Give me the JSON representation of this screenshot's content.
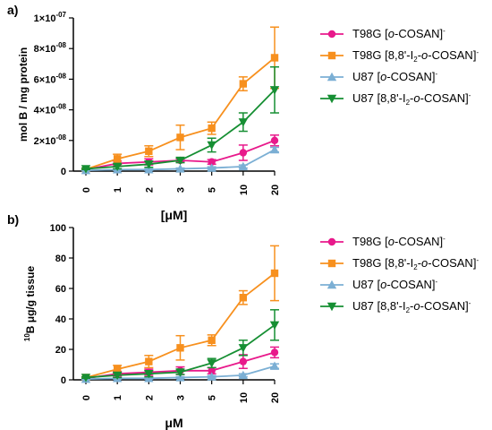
{
  "colors": {
    "T98G [o-COSAN]-": "#e8198b",
    "T98G [8,8'-I2-o-COSAN]-": "#f7901e",
    "U87 [o-COSAN]-": "#7bafd4",
    "U87 [8,8'-I2-o-COSAN]-": "#168f33"
  },
  "markers": {
    "T98G [o-COSAN]-": "circle",
    "T98G [8,8'-I2-o-COSAN]-": "square",
    "U87 [o-COSAN]-": "triangle-up",
    "U87 [8,8'-I2-o-COSAN]-": "triangle-down"
  },
  "chart_data": [
    {
      "panel": "a)",
      "type": "line",
      "xlabel": "[μM]",
      "ylabel": "mol B / mg protein",
      "categories": [
        "0",
        "1",
        "2",
        "3",
        "5",
        "10",
        "20"
      ],
      "ylim": [
        0,
        1e-07
      ],
      "yticks": [
        0,
        2e-08,
        4e-08,
        6e-08,
        8e-08,
        1e-07
      ],
      "ytick_labels": [
        {
          "mant": "0",
          "exp": ""
        },
        {
          "mant": "2×10",
          "exp": "-08"
        },
        {
          "mant": "4×10",
          "exp": "-08"
        },
        {
          "mant": "6×10",
          "exp": "-08"
        },
        {
          "mant": "8×10",
          "exp": "-08"
        },
        {
          "mant": "1×10",
          "exp": "-07"
        }
      ],
      "legend_position": "right",
      "series": [
        {
          "name": "T98G [o-COSAN]-",
          "values": [
            1e-09,
            5e-09,
            6e-09,
            7e-09,
            6e-09,
            1.2e-08,
            2e-08
          ],
          "errors": [
            5e-10,
            1.5e-09,
            2e-09,
            1e-09,
            1.5e-09,
            5e-09,
            3.5e-09
          ]
        },
        {
          "name": "T98G [8,8'-I2-o-COSAN]-",
          "values": [
            1.2e-09,
            8e-09,
            1.3e-08,
            2.2e-08,
            2.8e-08,
            5.7e-08,
            7.4e-08
          ],
          "errors": [
            5e-10,
            3e-09,
            3.5e-09,
            8e-09,
            4e-09,
            4.5e-09,
            2e-08
          ]
        },
        {
          "name": "U87 [o-COSAN]-",
          "values": [
            5e-10,
            1e-09,
            1e-09,
            1.5e-09,
            2e-09,
            3e-09,
            1.4e-08
          ],
          "errors": [
            3e-10,
            5e-10,
            5e-10,
            5e-10,
            8e-10,
            1e-09,
            1.5e-09
          ]
        },
        {
          "name": "U87 [8,8'-I2-o-COSAN]-",
          "values": [
            1.5e-09,
            3e-09,
            4.5e-09,
            7e-09,
            1.7e-08,
            3.2e-08,
            5.3e-08
          ],
          "errors": [
            5e-10,
            1.5e-09,
            2e-09,
            1.5e-09,
            4.5e-09,
            6e-09,
            1.5e-08
          ]
        }
      ]
    },
    {
      "panel": "b)",
      "type": "line",
      "xlabel": "μM",
      "ylabel": "10B μg/g tissue",
      "categories": [
        "0",
        "1",
        "2",
        "3",
        "5",
        "10",
        "20"
      ],
      "ylim": [
        0,
        100
      ],
      "yticks": [
        0,
        20,
        40,
        60,
        80,
        100
      ],
      "ytick_labels": [
        {
          "mant": "0",
          "exp": ""
        },
        {
          "mant": "20",
          "exp": ""
        },
        {
          "mant": "40",
          "exp": ""
        },
        {
          "mant": "60",
          "exp": ""
        },
        {
          "mant": "80",
          "exp": ""
        },
        {
          "mant": "100",
          "exp": ""
        }
      ],
      "legend_position": "right",
      "series": [
        {
          "name": "T98G [o-COSAN]-",
          "values": [
            1,
            4,
            5,
            6,
            6,
            12,
            18
          ],
          "errors": [
            0.5,
            1.5,
            2,
            2.5,
            2,
            4.5,
            3.5
          ]
        },
        {
          "name": "T98G [8,8'-I2-o-COSAN]-",
          "values": [
            1.5,
            7,
            12,
            21,
            26,
            54,
            70
          ],
          "errors": [
            0.5,
            2.5,
            4,
            8,
            3.5,
            4.5,
            18
          ]
        },
        {
          "name": "U87 [o-COSAN]-",
          "values": [
            0.5,
            1,
            1,
            1.5,
            2,
            3,
            9
          ],
          "errors": [
            0.3,
            0.5,
            0.5,
            0.5,
            0.8,
            1,
            1.5
          ]
        },
        {
          "name": "U87 [8,8'-I2-o-COSAN]-",
          "values": [
            1.5,
            3,
            4,
            5,
            11,
            21,
            36
          ],
          "errors": [
            0.5,
            1.5,
            2,
            1.5,
            3,
            5,
            10
          ]
        }
      ]
    }
  ],
  "legends": [
    [
      {
        "pre": "T98G [",
        "ital": "o",
        "post": "-COSAN]",
        "sup": "-"
      },
      {
        "pre": "T98G [8,8'-I",
        "sub": "2",
        "mid": "-",
        "ital": "o",
        "post": "-COSAN]",
        "sup": "-"
      },
      {
        "pre": "U87  [",
        "ital": "o",
        "post": "-COSAN]",
        "sup": "-"
      },
      {
        "pre": "U87 [8,8'-I",
        "sub": "2",
        "mid": "-",
        "ital": "o",
        "post": "-COSAN]",
        "sup": "-"
      }
    ],
    [
      {
        "pre": "T98G [",
        "ital": "o",
        "post": "-COSAN]",
        "sup": "-"
      },
      {
        "pre": "T98G [8,8'-I",
        "sub": "2",
        "mid": "-",
        "ital": "o",
        "post": "-COSAN]",
        "sup": "-"
      },
      {
        "pre": "U87 [",
        "ital": "o",
        "post": "-COSAN]",
        "sup": "-"
      },
      {
        "pre": "U87 [8,8'-I",
        "sub": "2",
        "mid": "-",
        "ital": "o",
        "post": "-COSAN]",
        "sup": "-"
      }
    ]
  ],
  "panel_b_ylabel_parts": {
    "sup": "10",
    "rest": "B μg/g tissue"
  }
}
